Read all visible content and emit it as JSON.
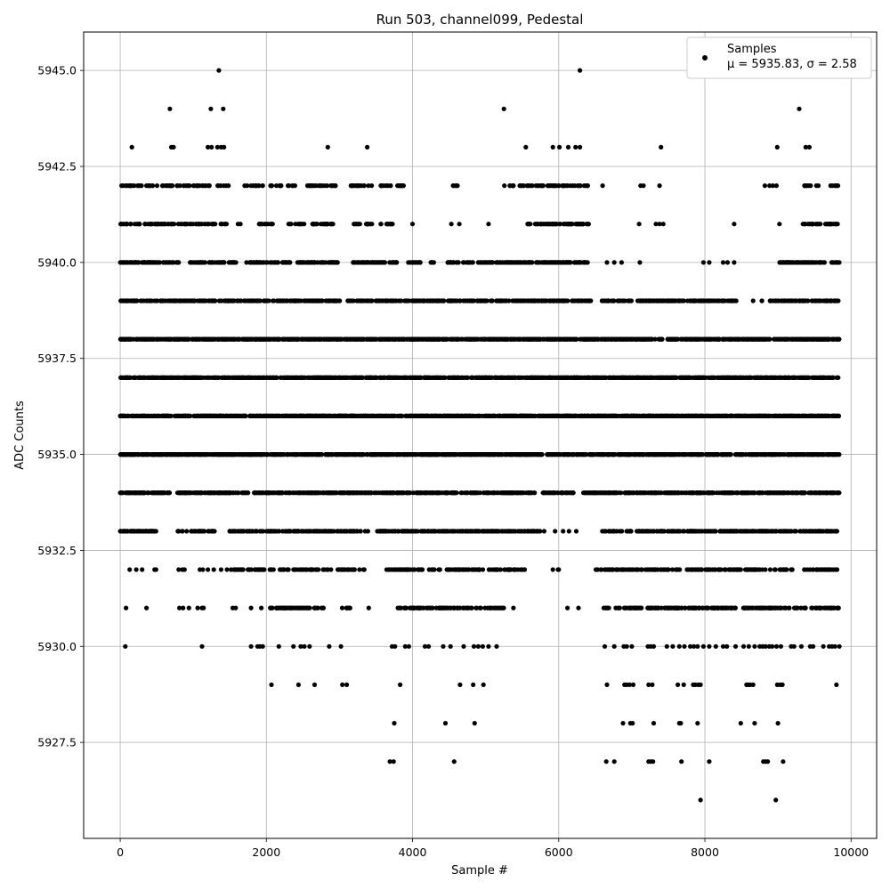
{
  "chart_data": {
    "type": "scatter",
    "title": "Run 503, channel099, Pedestal",
    "xlabel": "Sample #",
    "ylabel": "ADC Counts",
    "xlim": [
      -500,
      10350
    ],
    "ylim": [
      5925.0,
      5946.0
    ],
    "x_ticks": [
      0,
      2000,
      4000,
      6000,
      8000,
      10000
    ],
    "y_ticks": [
      5927.5,
      5930.0,
      5932.5,
      5935.0,
      5937.5,
      5940.0,
      5942.5,
      5945.0
    ],
    "x_tick_labels": [
      "0",
      "2000",
      "4000",
      "6000",
      "8000",
      "10000"
    ],
    "y_tick_labels": [
      "5927.5",
      "5930.0",
      "5932.5",
      "5935.0",
      "5937.5",
      "5940.0",
      "5942.5",
      "5945.0"
    ],
    "grid": true,
    "marker_color": "#000000",
    "legend": {
      "placement": "top-right",
      "series_label": "Samples",
      "stats_text": "μ = 5935.83, σ = 2.58"
    },
    "series": [
      {
        "name": "Samples",
        "points": [
          [
            1350,
            5945
          ],
          [
            6290,
            5945
          ],
          [
            680,
            5944
          ],
          [
            1240,
            5944
          ],
          [
            1410,
            5944
          ],
          [
            5250,
            5944
          ],
          [
            9290,
            5944
          ],
          [
            160,
            5943
          ],
          [
            700,
            5943
          ],
          [
            730,
            5943
          ],
          [
            1200,
            5943
          ],
          [
            1250,
            5943
          ],
          [
            1330,
            5943
          ],
          [
            1380,
            5943
          ],
          [
            1420,
            5943
          ],
          [
            2840,
            5943
          ],
          [
            3380,
            5943
          ],
          [
            5550,
            5943
          ],
          [
            5920,
            5943
          ],
          [
            6010,
            5943
          ],
          [
            6130,
            5943
          ],
          [
            6230,
            5943
          ],
          [
            6290,
            5943
          ],
          [
            7400,
            5943
          ],
          [
            8990,
            5943
          ],
          [
            9380,
            5943
          ],
          [
            9430,
            5943
          ],
          [
            6600,
            5942
          ],
          [
            7120,
            5942
          ],
          [
            7160,
            5942
          ],
          [
            7380,
            5942
          ],
          [
            8820,
            5942
          ],
          [
            9780,
            5942
          ],
          [
            3230,
            5942
          ],
          [
            2360,
            5942
          ],
          [
            2180,
            5942
          ],
          [
            4000,
            5941
          ],
          [
            4530,
            5941
          ],
          [
            4640,
            5941
          ],
          [
            5040,
            5941
          ],
          [
            7100,
            5941
          ],
          [
            7330,
            5941
          ],
          [
            7380,
            5941
          ],
          [
            7430,
            5941
          ],
          [
            8400,
            5941
          ],
          [
            9020,
            5941
          ],
          [
            9800,
            5941
          ],
          [
            4100,
            5940
          ],
          [
            4250,
            5940
          ],
          [
            5000,
            5940
          ],
          [
            6660,
            5940
          ],
          [
            6760,
            5940
          ],
          [
            6860,
            5940
          ],
          [
            7110,
            5940
          ],
          [
            7980,
            5940
          ],
          [
            8060,
            5940
          ],
          [
            8250,
            5940
          ],
          [
            8310,
            5940
          ],
          [
            8400,
            5940
          ],
          [
            9800,
            5940
          ],
          [
            7080,
            5939
          ],
          [
            7140,
            5939
          ],
          [
            7580,
            5939
          ],
          [
            7680,
            5939
          ],
          [
            7800,
            5939
          ],
          [
            7930,
            5939
          ],
          [
            8060,
            5939
          ],
          [
            8270,
            5939
          ],
          [
            8350,
            5939
          ],
          [
            8660,
            5939
          ],
          [
            8780,
            5939
          ],
          [
            5010,
            5933
          ],
          [
            5800,
            5933
          ],
          [
            5950,
            5933
          ],
          [
            6060,
            5933
          ],
          [
            6140,
            5933
          ],
          [
            6240,
            5933
          ],
          [
            1290,
            5933
          ],
          [
            60,
            5933
          ],
          [
            160,
            5933
          ],
          [
            230,
            5933
          ],
          [
            340,
            5933
          ],
          [
            440,
            5933
          ],
          [
            490,
            5933
          ],
          [
            130,
            5932
          ],
          [
            220,
            5932
          ],
          [
            300,
            5932
          ],
          [
            470,
            5932
          ],
          [
            490,
            5932
          ],
          [
            800,
            5932
          ],
          [
            850,
            5932
          ],
          [
            880,
            5932
          ],
          [
            1090,
            5932
          ],
          [
            1130,
            5932
          ],
          [
            1200,
            5932
          ],
          [
            1280,
            5932
          ],
          [
            1380,
            5932
          ],
          [
            1460,
            5932
          ],
          [
            5920,
            5932
          ],
          [
            5990,
            5932
          ],
          [
            6000,
            5932
          ],
          [
            80,
            5931
          ],
          [
            360,
            5931
          ],
          [
            810,
            5931
          ],
          [
            860,
            5931
          ],
          [
            940,
            5931
          ],
          [
            1060,
            5931
          ],
          [
            1120,
            5931
          ],
          [
            1140,
            5931
          ],
          [
            1540,
            5931
          ],
          [
            1580,
            5931
          ],
          [
            1790,
            5931
          ],
          [
            1930,
            5931
          ],
          [
            3800,
            5931
          ],
          [
            3820,
            5931
          ],
          [
            3840,
            5931
          ],
          [
            5380,
            5931
          ],
          [
            6120,
            5931
          ],
          [
            6270,
            5931
          ],
          [
            3400,
            5931
          ],
          [
            70,
            5930
          ],
          [
            1120,
            5930
          ],
          [
            1790,
            5930
          ],
          [
            1880,
            5930
          ],
          [
            1910,
            5930
          ],
          [
            1950,
            5930
          ],
          [
            2170,
            5930
          ],
          [
            2370,
            5930
          ],
          [
            2470,
            5930
          ],
          [
            2520,
            5930
          ],
          [
            2590,
            5930
          ],
          [
            2860,
            5930
          ],
          [
            3020,
            5930
          ],
          [
            3720,
            5930
          ],
          [
            3760,
            5930
          ],
          [
            3900,
            5930
          ],
          [
            3950,
            5930
          ],
          [
            4170,
            5930
          ],
          [
            4220,
            5930
          ],
          [
            4420,
            5930
          ],
          [
            4520,
            5930
          ],
          [
            4700,
            5930
          ],
          [
            4840,
            5930
          ],
          [
            4900,
            5930
          ],
          [
            4960,
            5930
          ],
          [
            5040,
            5930
          ],
          [
            5150,
            5930
          ],
          [
            6630,
            5930
          ],
          [
            6760,
            5930
          ],
          [
            6890,
            5930
          ],
          [
            6930,
            5930
          ],
          [
            7000,
            5930
          ],
          [
            7220,
            5930
          ],
          [
            7260,
            5930
          ],
          [
            7300,
            5930
          ],
          [
            7480,
            5930
          ],
          [
            7560,
            5930
          ],
          [
            7650,
            5930
          ],
          [
            7720,
            5930
          ],
          [
            7800,
            5930
          ],
          [
            7850,
            5930
          ],
          [
            7900,
            5930
          ],
          [
            7980,
            5930
          ],
          [
            8060,
            5930
          ],
          [
            8150,
            5930
          ],
          [
            8250,
            5930
          ],
          [
            8300,
            5930
          ],
          [
            8420,
            5930
          ],
          [
            8530,
            5930
          ],
          [
            8600,
            5930
          ],
          [
            8680,
            5930
          ],
          [
            8750,
            5930
          ],
          [
            8790,
            5930
          ],
          [
            8830,
            5930
          ],
          [
            8880,
            5930
          ],
          [
            8920,
            5930
          ],
          [
            8980,
            5930
          ],
          [
            9040,
            5930
          ],
          [
            9180,
            5930
          ],
          [
            9220,
            5930
          ],
          [
            9320,
            5930
          ],
          [
            9440,
            5930
          ],
          [
            9480,
            5930
          ],
          [
            9620,
            5930
          ],
          [
            9700,
            5930
          ],
          [
            9740,
            5930
          ],
          [
            9780,
            5930
          ],
          [
            9840,
            5930
          ],
          [
            2070,
            5929
          ],
          [
            2440,
            5929
          ],
          [
            2660,
            5929
          ],
          [
            3040,
            5929
          ],
          [
            3100,
            5929
          ],
          [
            3830,
            5929
          ],
          [
            4650,
            5929
          ],
          [
            4830,
            5929
          ],
          [
            4970,
            5929
          ],
          [
            6660,
            5929
          ],
          [
            6900,
            5929
          ],
          [
            6930,
            5929
          ],
          [
            6970,
            5929
          ],
          [
            7020,
            5929
          ],
          [
            7230,
            5929
          ],
          [
            7280,
            5929
          ],
          [
            7630,
            5929
          ],
          [
            7710,
            5929
          ],
          [
            7840,
            5929
          ],
          [
            7870,
            5929
          ],
          [
            7910,
            5929
          ],
          [
            7940,
            5929
          ],
          [
            8570,
            5929
          ],
          [
            8590,
            5929
          ],
          [
            8620,
            5929
          ],
          [
            8660,
            5929
          ],
          [
            8990,
            5929
          ],
          [
            9030,
            5929
          ],
          [
            9060,
            5929
          ],
          [
            9800,
            5929
          ],
          [
            3750,
            5928
          ],
          [
            4450,
            5928
          ],
          [
            4850,
            5928
          ],
          [
            6880,
            5928
          ],
          [
            6980,
            5928
          ],
          [
            7010,
            5928
          ],
          [
            7300,
            5928
          ],
          [
            7650,
            5928
          ],
          [
            7670,
            5928
          ],
          [
            7900,
            5928
          ],
          [
            8490,
            5928
          ],
          [
            8680,
            5928
          ],
          [
            9000,
            5928
          ],
          [
            3690,
            5927
          ],
          [
            3740,
            5927
          ],
          [
            4570,
            5927
          ],
          [
            6650,
            5927
          ],
          [
            6760,
            5927
          ],
          [
            7230,
            5927
          ],
          [
            7260,
            5927
          ],
          [
            7290,
            5927
          ],
          [
            7680,
            5927
          ],
          [
            8060,
            5927
          ],
          [
            8800,
            5927
          ],
          [
            8830,
            5927
          ],
          [
            8860,
            5927
          ],
          [
            9070,
            5927
          ],
          [
            7940,
            5926
          ],
          [
            8970,
            5926
          ]
        ]
      }
    ],
    "dense_rows": [
      {
        "y": 5942,
        "n": 220,
        "gaps": [
          [
            1500,
            1700
          ],
          [
            2400,
            2560
          ],
          [
            2960,
            3150
          ],
          [
            3450,
            3560
          ],
          [
            3880,
            4420
          ],
          [
            4620,
            5240
          ],
          [
            5260,
            5330
          ],
          [
            6420,
            8880
          ],
          [
            9000,
            9330
          ],
          [
            9560,
            9700
          ]
        ]
      },
      {
        "y": 5941,
        "n": 280,
        "gaps": [
          [
            1460,
            1600
          ],
          [
            1650,
            1900
          ],
          [
            2100,
            2290
          ],
          [
            2520,
            2600
          ],
          [
            2960,
            3190
          ],
          [
            3300,
            3360
          ],
          [
            3480,
            3560
          ],
          [
            3760,
            3980
          ],
          [
            4000,
            5560
          ],
          [
            6420,
            9320
          ],
          [
            9580,
            9620
          ]
        ]
      },
      {
        "y": 5940,
        "n": 520,
        "gaps": [
          [
            830,
            930
          ],
          [
            1610,
            1700
          ],
          [
            2330,
            2420
          ],
          [
            3020,
            3180
          ],
          [
            3790,
            3940
          ],
          [
            4120,
            4200
          ],
          [
            4300,
            4470
          ],
          [
            6420,
            8990
          ],
          [
            9640,
            9720
          ]
        ]
      },
      {
        "y": 5939,
        "n": 780,
        "gaps": [
          [
            3010,
            3100
          ],
          [
            6440,
            6580
          ],
          [
            7020,
            7100
          ],
          [
            8430,
            8740
          ],
          [
            8800,
            8880
          ]
        ]
      },
      {
        "y": 5938,
        "n": 1200,
        "gaps": []
      },
      {
        "y": 5937,
        "n": 1300,
        "gaps": []
      },
      {
        "y": 5936,
        "n": 1350,
        "gaps": []
      },
      {
        "y": 5935,
        "n": 1250,
        "gaps": []
      },
      {
        "y": 5934,
        "n": 1000,
        "gaps": [
          [
            680,
            770
          ],
          [
            5680,
            5780
          ],
          [
            6200,
            6330
          ]
        ]
      },
      {
        "y": 5933,
        "n": 640,
        "gaps": [
          [
            520,
            780
          ],
          [
            1300,
            1460
          ],
          [
            3390,
            3500
          ],
          [
            5750,
            6560
          ]
        ]
      },
      {
        "y": 5932,
        "n": 420,
        "gaps": [
          [
            0,
            1500
          ],
          [
            1980,
            2040
          ],
          [
            3350,
            3640
          ],
          [
            5540,
            6420
          ]
        ]
      },
      {
        "y": 5931,
        "n": 330,
        "gaps": [
          [
            0,
            2050
          ],
          [
            2790,
            3000
          ],
          [
            3150,
            3880
          ],
          [
            5260,
            6600
          ],
          [
            6700,
            6780
          ]
        ]
      }
    ]
  }
}
